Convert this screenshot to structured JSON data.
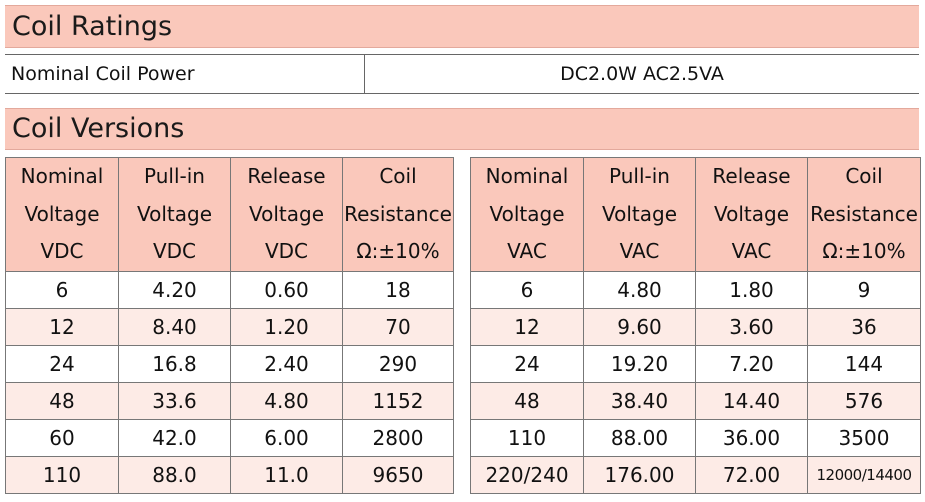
{
  "coil_ratings": {
    "title": "Coil Ratings",
    "label": "Nominal Coil Power",
    "value": "DC2.0W AC2.5VA"
  },
  "coil_versions": {
    "title": "Coil Versions",
    "dc": {
      "headers": [
        [
          "Nominal",
          "Voltage",
          "VDC"
        ],
        [
          "Pull-in",
          "Voltage",
          "VDC"
        ],
        [
          "Release",
          "Voltage",
          "VDC"
        ],
        [
          "Coil",
          "Resistance",
          "Ω:±10%"
        ]
      ],
      "rows": [
        [
          "6",
          "4.20",
          "0.60",
          "18"
        ],
        [
          "12",
          "8.40",
          "1.20",
          "70"
        ],
        [
          "24",
          "16.8",
          "2.40",
          "290"
        ],
        [
          "48",
          "33.6",
          "4.80",
          "1152"
        ],
        [
          "60",
          "42.0",
          "6.00",
          "2800"
        ],
        [
          "110",
          "88.0",
          "11.0",
          "9650"
        ]
      ]
    },
    "ac": {
      "headers": [
        [
          "Nominal",
          "Voltage",
          "VAC"
        ],
        [
          "Pull-in",
          "Voltage",
          "VAC"
        ],
        [
          "Release",
          "Voltage",
          "VAC"
        ],
        [
          "Coil",
          "Resistance",
          "Ω:±10%"
        ]
      ],
      "rows": [
        [
          "6",
          "4.80",
          "1.80",
          "9"
        ],
        [
          "12",
          "9.60",
          "3.60",
          "36"
        ],
        [
          "24",
          "19.20",
          "7.20",
          "144"
        ],
        [
          "48",
          "38.40",
          "14.40",
          "576"
        ],
        [
          "110",
          "88.00",
          "36.00",
          "3500"
        ],
        [
          "220/240",
          "176.00",
          "72.00",
          "12000/14400"
        ]
      ]
    }
  }
}
